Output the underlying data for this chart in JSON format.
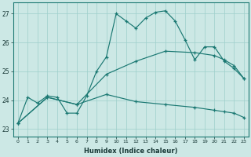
{
  "xlabel": "Humidex (Indice chaleur)",
  "xlim": [
    -0.5,
    23.5
  ],
  "ylim": [
    22.75,
    27.4
  ],
  "yticks": [
    23,
    24,
    25,
    26,
    27
  ],
  "xticks": [
    0,
    1,
    2,
    3,
    4,
    5,
    6,
    7,
    8,
    9,
    10,
    11,
    12,
    13,
    14,
    15,
    16,
    17,
    18,
    19,
    20,
    21,
    22,
    23
  ],
  "bg_color": "#cce8e5",
  "line_color": "#1a7872",
  "grid_color": "#9ecfcb",
  "line1_x": [
    0,
    1,
    2,
    3,
    4,
    5,
    6,
    7,
    8,
    9,
    10,
    11,
    12,
    13,
    14,
    15,
    16,
    17,
    18,
    19,
    20,
    21,
    22,
    23
  ],
  "line1_y": [
    23.2,
    24.1,
    23.9,
    24.15,
    24.1,
    23.55,
    23.55,
    24.15,
    25.0,
    25.5,
    27.0,
    26.75,
    26.5,
    26.85,
    27.05,
    27.1,
    26.75,
    26.1,
    25.4,
    25.85,
    25.85,
    25.35,
    25.1,
    24.75
  ],
  "line2_x": [
    0,
    3,
    6,
    9,
    12,
    15,
    18,
    20,
    21,
    22,
    23
  ],
  "line2_y": [
    23.2,
    24.1,
    23.85,
    24.9,
    25.35,
    25.7,
    25.65,
    25.55,
    25.4,
    25.2,
    24.75
  ],
  "line3_x": [
    0,
    3,
    6,
    9,
    12,
    15,
    18,
    20,
    21,
    22,
    23
  ],
  "line3_y": [
    23.2,
    24.1,
    23.85,
    24.2,
    23.95,
    23.85,
    23.75,
    23.65,
    23.6,
    23.55,
    23.4
  ]
}
